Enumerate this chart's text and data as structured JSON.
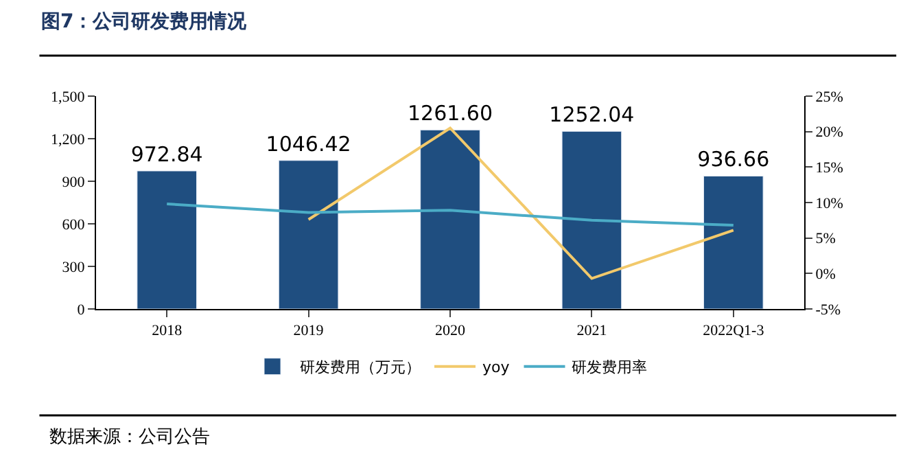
{
  "chart_data": {
    "type": "bar",
    "title": "图7：公司研发费用情况",
    "categories": [
      "2018",
      "2019",
      "2020",
      "2021",
      "2022Q1-3"
    ],
    "series": [
      {
        "name": "研发费用（万元）",
        "color": "#1f4e80",
        "values": [
          972.84,
          1046.42,
          1261.6,
          1252.04,
          936.66
        ],
        "value_labels": [
          "972.84",
          "1046.42",
          "1261.60",
          "1252.04",
          "936.66"
        ]
      },
      {
        "name": "yoy",
        "type": "line",
        "axis": "y2",
        "color": "#f2c96b",
        "values": [
          null,
          7.6,
          20.5,
          -0.7,
          6.1
        ]
      },
      {
        "name": "研发费用率",
        "type": "line",
        "axis": "y2",
        "color": "#4bacc6",
        "values": [
          9.8,
          8.6,
          8.9,
          7.5,
          6.8
        ]
      }
    ],
    "ylim": [
      0,
      1500
    ],
    "yticks": [
      0,
      300,
      600,
      900,
      {
        "value": 1200,
        "label": "1,200"
      },
      {
        "value": 1500,
        "label": "1,500"
      }
    ],
    "y2lim": [
      -5,
      25
    ],
    "y2ticks": [
      {
        "value": -5,
        "label": "-5%"
      },
      {
        "value": 0,
        "label": "0%"
      },
      {
        "value": 5,
        "label": "5%"
      },
      {
        "value": 10,
        "label": "10%"
      },
      {
        "value": 15,
        "label": "15%"
      },
      {
        "value": 20,
        "label": "20%"
      },
      {
        "value": 25,
        "label": "25%"
      }
    ],
    "legend": "bottom",
    "marker": "none",
    "line_style": "solid",
    "annotations": [
      "数据来源：公司公告"
    ]
  }
}
